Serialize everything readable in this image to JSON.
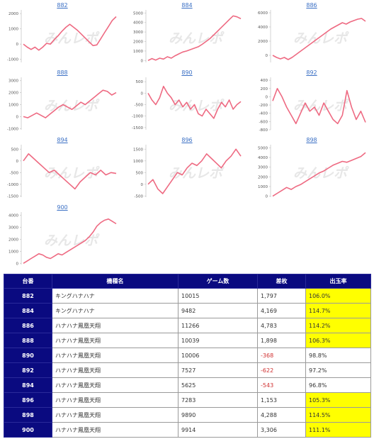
{
  "watermark": "みんレポ",
  "chart_data": [
    {
      "type": "line",
      "title": "882",
      "yticks": [
        2000,
        1000,
        0,
        -1000
      ],
      "ylim": [
        -1200,
        2100
      ],
      "values": [
        0,
        -200,
        -350,
        -200,
        -400,
        -200,
        50,
        0,
        300,
        550,
        850,
        1100,
        1300,
        1100,
        900,
        650,
        400,
        150,
        -100,
        -50,
        350,
        750,
        1150,
        1550,
        1800
      ]
    },
    {
      "type": "line",
      "title": "884",
      "yticks": [
        5000,
        4000,
        3000,
        2000,
        1000,
        0
      ],
      "ylim": [
        -200,
        5100
      ],
      "values": [
        0,
        200,
        50,
        250,
        150,
        400,
        250,
        500,
        700,
        900,
        1000,
        1150,
        1300,
        1450,
        1700,
        2000,
        2300,
        2700,
        3100,
        3500,
        3900,
        4300,
        4700,
        4600,
        4400
      ]
    },
    {
      "type": "line",
      "title": "886",
      "yticks": [
        6000,
        4000,
        2000,
        0
      ],
      "ylim": [
        -1000,
        6100
      ],
      "values": [
        0,
        -300,
        -500,
        -300,
        -600,
        -300,
        100,
        500,
        900,
        1300,
        1700,
        2100,
        2500,
        2900,
        3300,
        3700,
        4000,
        4300,
        4600,
        4400,
        4700,
        4900,
        5100,
        5200,
        4800
      ]
    },
    {
      "type": "line",
      "title": "888",
      "yticks": [
        3000,
        2000,
        1000,
        0,
        -1000
      ],
      "ylim": [
        -1100,
        3100
      ],
      "values": [
        0,
        -100,
        100,
        300,
        100,
        -100,
        200,
        500,
        800,
        1000,
        800,
        600,
        900,
        1200,
        1000,
        1300,
        1600,
        1900,
        2200,
        2100,
        1800,
        2000
      ]
    },
    {
      "type": "line",
      "title": "890",
      "yticks": [
        500,
        0,
        -500,
        -1000,
        -1500
      ],
      "ylim": [
        -1600,
        600
      ],
      "values": [
        0,
        -300,
        -500,
        -200,
        300,
        0,
        -200,
        -500,
        -300,
        -600,
        -400,
        -700,
        -500,
        -900,
        -1000,
        -700,
        -900,
        -1100,
        -700,
        -400,
        -600,
        -300,
        -700,
        -500,
        -370
      ]
    },
    {
      "type": "line",
      "title": "892",
      "yticks": [
        400,
        200,
        0,
        -200,
        -400,
        -600,
        -800
      ],
      "ylim": [
        -800,
        420
      ],
      "values": [
        -100,
        200,
        0,
        -250,
        -450,
        -650,
        -400,
        -150,
        -350,
        -250,
        -450,
        -150,
        -350,
        -550,
        -650,
        -450,
        150,
        -250,
        -550,
        -350,
        -620
      ]
    },
    {
      "type": "line",
      "title": "894",
      "yticks": [
        500,
        0,
        -500,
        -1000,
        -1500
      ],
      "ylim": [
        -1550,
        600
      ],
      "values": [
        0,
        300,
        100,
        -100,
        -300,
        -500,
        -400,
        -600,
        -800,
        -1000,
        -1200,
        -900,
        -700,
        -500,
        -600,
        -400,
        -600,
        -500,
        -540
      ]
    },
    {
      "type": "line",
      "title": "896",
      "yticks": [
        1500,
        1000,
        500,
        0,
        -500
      ],
      "ylim": [
        -550,
        1600
      ],
      "values": [
        0,
        200,
        -200,
        -400,
        -100,
        200,
        500,
        400,
        700,
        900,
        800,
        1000,
        1300,
        1100,
        900,
        700,
        1000,
        1200,
        1500,
        1200
      ]
    },
    {
      "type": "line",
      "title": "898",
      "yticks": [
        5000,
        4000,
        3000,
        2000,
        1000,
        0
      ],
      "ylim": [
        -100,
        5100
      ],
      "values": [
        0,
        300,
        600,
        900,
        700,
        1000,
        1200,
        1500,
        1800,
        2100,
        2400,
        2600,
        2900,
        3200,
        3400,
        3600,
        3500,
        3700,
        3900,
        4100,
        4500
      ]
    },
    {
      "type": "line",
      "title": "900",
      "yticks": [
        4000,
        3000,
        2000,
        1000,
        0
      ],
      "ylim": [
        -100,
        4100
      ],
      "values": [
        0,
        200,
        400,
        600,
        800,
        700,
        500,
        400,
        600,
        800,
        700,
        900,
        1100,
        1300,
        1500,
        1700,
        1900,
        2200,
        2600,
        3100,
        3400,
        3600,
        3700,
        3500,
        3300
      ]
    }
  ],
  "table": {
    "headers": [
      "台番",
      "機種名",
      "ゲーム数",
      "差枚",
      "出玉率"
    ],
    "rows": [
      {
        "no": "882",
        "name": "キングハナハナ",
        "games": "10015",
        "diff": "1,797",
        "rate": "106.0%",
        "neg": false,
        "hi": true
      },
      {
        "no": "884",
        "name": "キングハナハナ",
        "games": "9482",
        "diff": "4,169",
        "rate": "114.7%",
        "neg": false,
        "hi": true
      },
      {
        "no": "886",
        "name": "ハナハナ鳳凰天翔",
        "games": "11266",
        "diff": "4,783",
        "rate": "114.2%",
        "neg": false,
        "hi": true
      },
      {
        "no": "888",
        "name": "ハナハナ鳳凰天翔",
        "games": "10039",
        "diff": "1,898",
        "rate": "106.3%",
        "neg": false,
        "hi": true
      },
      {
        "no": "890",
        "name": "ハナハナ鳳凰天翔",
        "games": "10006",
        "diff": "-368",
        "rate": "98.8%",
        "neg": true,
        "hi": false
      },
      {
        "no": "892",
        "name": "ハナハナ鳳凰天翔",
        "games": "7527",
        "diff": "-622",
        "rate": "97.2%",
        "neg": true,
        "hi": false
      },
      {
        "no": "894",
        "name": "ハナハナ鳳凰天翔",
        "games": "5625",
        "diff": "-543",
        "rate": "96.8%",
        "neg": true,
        "hi": false
      },
      {
        "no": "896",
        "name": "ハナハナ鳳凰天翔",
        "games": "7283",
        "diff": "1,153",
        "rate": "105.3%",
        "neg": false,
        "hi": true
      },
      {
        "no": "898",
        "name": "ハナハナ鳳凰天翔",
        "games": "9890",
        "diff": "4,288",
        "rate": "114.5%",
        "neg": false,
        "hi": true
      },
      {
        "no": "900",
        "name": "ハナハナ鳳凰天翔",
        "games": "9914",
        "diff": "3,306",
        "rate": "111.1%",
        "neg": false,
        "hi": true
      }
    ]
  },
  "colors": {
    "line": "#ee6a82",
    "header": "#0a0a80",
    "highlight": "#ffff00",
    "negative": "#d03030",
    "title": "#3a6fc4"
  }
}
